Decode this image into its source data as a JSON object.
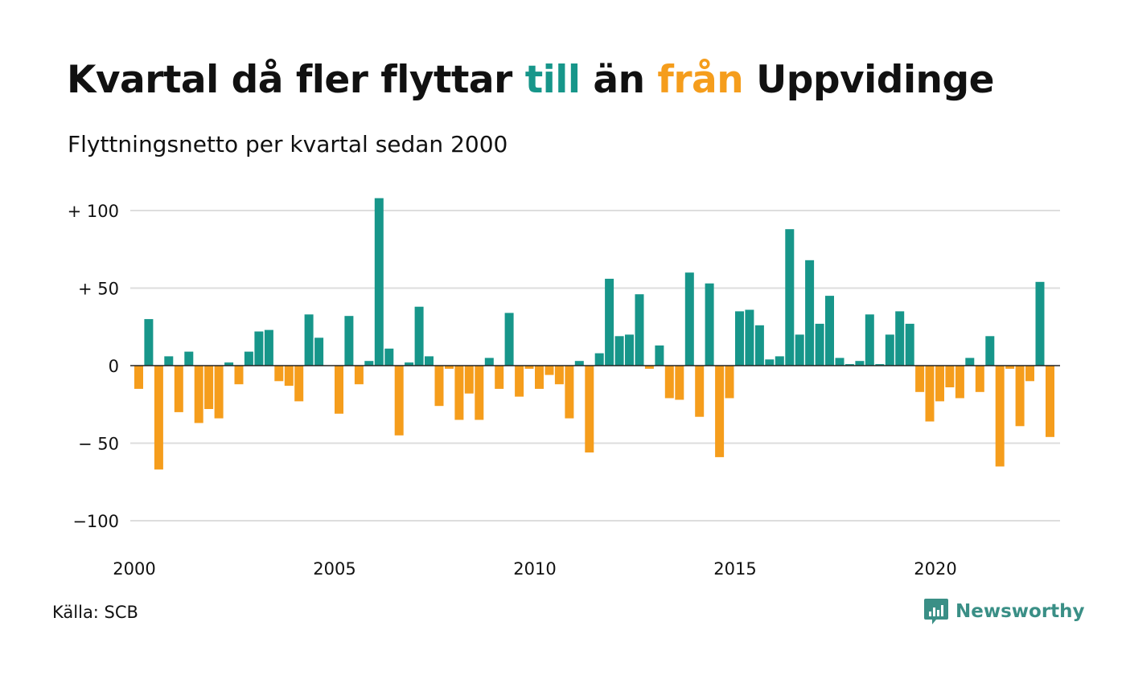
{
  "title": {
    "part1": "Kvartal då fler flyttar ",
    "till": "till",
    "part2": " än ",
    "fran": "från",
    "part3": " Uppvidinge"
  },
  "subtitle": "Flyttningsnetto per kvartal sedan 2000",
  "source": "Källa: SCB",
  "brand": {
    "name": "Newsworthy",
    "icon": "chat-bar-chart-icon"
  },
  "colors": {
    "positive": "#17968a",
    "negative": "#f59d1c",
    "grid": "#dddddd",
    "text": "#111111",
    "brand": "#3a8f86"
  },
  "chart_data": {
    "type": "bar",
    "x_start": "2000 Q1",
    "x_ticks": [
      {
        "value": 2000,
        "label": "2000"
      },
      {
        "value": 2005,
        "label": "2005"
      },
      {
        "value": 2010,
        "label": "2010"
      },
      {
        "value": 2015,
        "label": "2015"
      },
      {
        "value": 2020,
        "label": "2020"
      }
    ],
    "y_ticks": [
      {
        "value": 100,
        "label": "+ 100"
      },
      {
        "value": 50,
        "label": "+  50"
      },
      {
        "value": 0,
        "label": "0"
      },
      {
        "value": -50,
        "label": "− 50"
      },
      {
        "value": -100,
        "label": "−100"
      }
    ],
    "ylim": [
      -110,
      110
    ],
    "grid": true,
    "values": [
      -15,
      30,
      -67,
      6,
      -30,
      9,
      -37,
      -28,
      -34,
      2,
      -12,
      9,
      22,
      23,
      -10,
      -13,
      -23,
      33,
      18,
      0,
      -31,
      32,
      -12,
      3,
      108,
      11,
      -45,
      2,
      38,
      6,
      -26,
      -2,
      -35,
      -18,
      -35,
      5,
      -15,
      34,
      -20,
      -2,
      -15,
      -6,
      -12,
      -34,
      3,
      -56,
      8,
      56,
      19,
      20,
      46,
      -2,
      13,
      -21,
      -22,
      60,
      -33,
      53,
      -59,
      -21,
      35,
      36,
      26,
      4,
      6,
      88,
      20,
      68,
      27,
      45,
      5,
      1,
      3,
      33,
      1,
      20,
      35,
      27,
      -17,
      -36,
      -23,
      -14,
      -21,
      5,
      -17,
      19,
      -65,
      -2,
      -39,
      -10,
      54,
      -46
    ]
  }
}
